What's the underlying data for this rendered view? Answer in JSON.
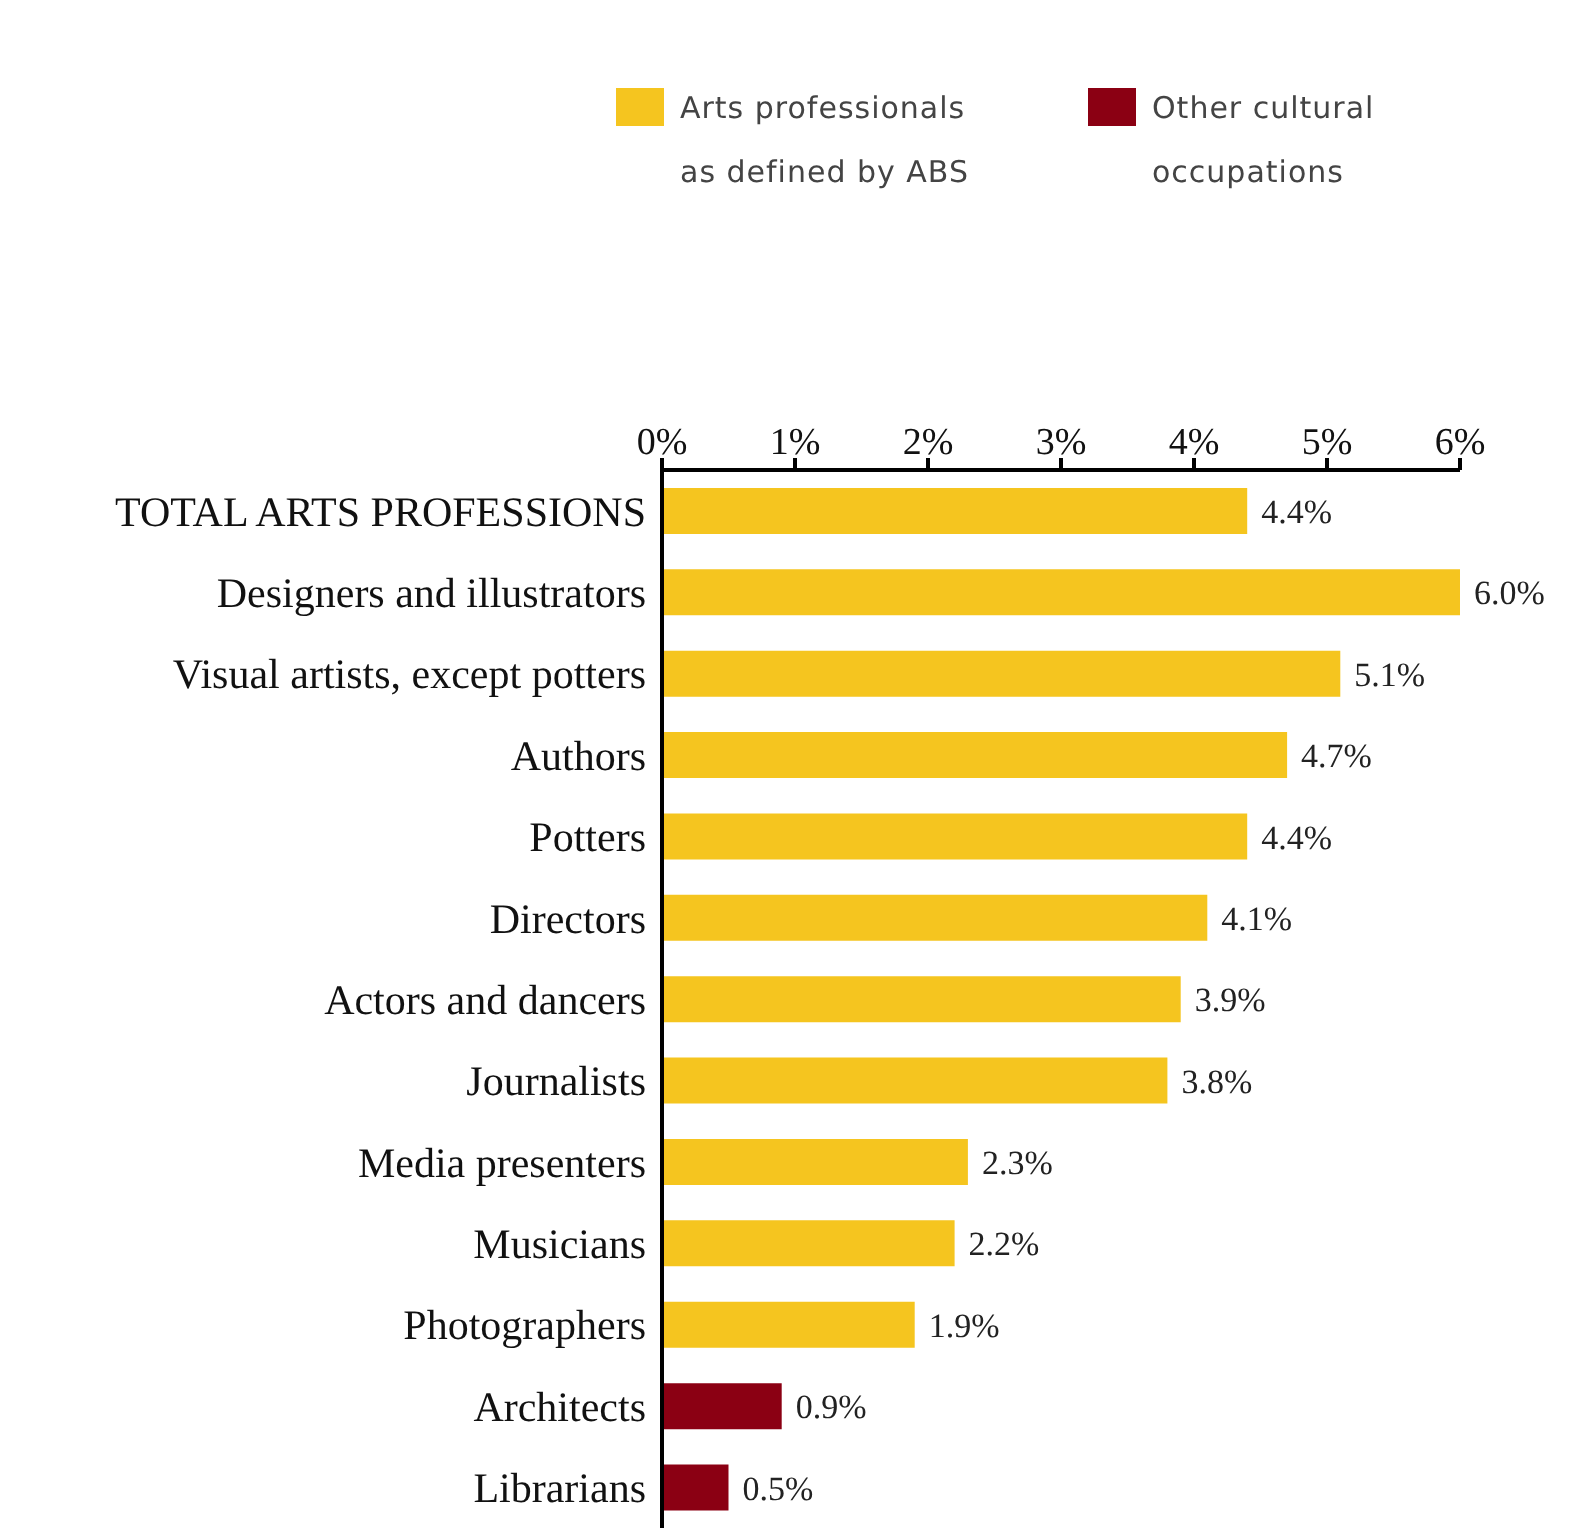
{
  "chart_data": {
    "type": "bar",
    "orientation": "horizontal",
    "stacked": true,
    "categories": [
      "TOTAL ARTS PROFESSIONS",
      "Designers and illustrators",
      "Visual artists, except potters",
      "Authors",
      "Potters",
      "Directors",
      "Actors and dancers",
      "Journalists",
      "Media presenters",
      "Musicians",
      "Photographers",
      "Architects",
      "Librarians"
    ],
    "series": [
      {
        "name": "Arts professionals as defined by ABS",
        "color": "#f5c51f",
        "values": [
          4.4,
          6.0,
          5.1,
          4.7,
          4.4,
          4.1,
          3.9,
          3.8,
          2.3,
          2.2,
          1.9,
          null,
          null
        ],
        "value_labels": [
          "4.4%",
          "6.0%",
          "5.1%",
          "4.7%",
          "4.4%",
          "4.1%",
          "3.9%",
          "3.8%",
          "2.3%",
          "2.2%",
          "1.9%",
          null,
          null
        ]
      },
      {
        "name": "Other cultural occupations",
        "color": "#8b0013",
        "values": [
          null,
          null,
          null,
          null,
          null,
          null,
          null,
          null,
          null,
          null,
          null,
          0.9,
          0.5
        ],
        "value_labels": [
          null,
          null,
          null,
          null,
          null,
          null,
          null,
          null,
          null,
          null,
          null,
          "0.9%",
          "0.5%"
        ]
      }
    ],
    "xlim": [
      0,
      6
    ],
    "xticks": [
      {
        "value": 0,
        "label": "0%"
      },
      {
        "value": 1,
        "label": "1%"
      },
      {
        "value": 2,
        "label": "2%"
      },
      {
        "value": 3,
        "label": "3%"
      },
      {
        "value": 4,
        "label": "4%"
      },
      {
        "value": 5,
        "label": "5%"
      },
      {
        "value": 6,
        "label": "6%"
      }
    ],
    "legend": "top",
    "grid": false
  }
}
